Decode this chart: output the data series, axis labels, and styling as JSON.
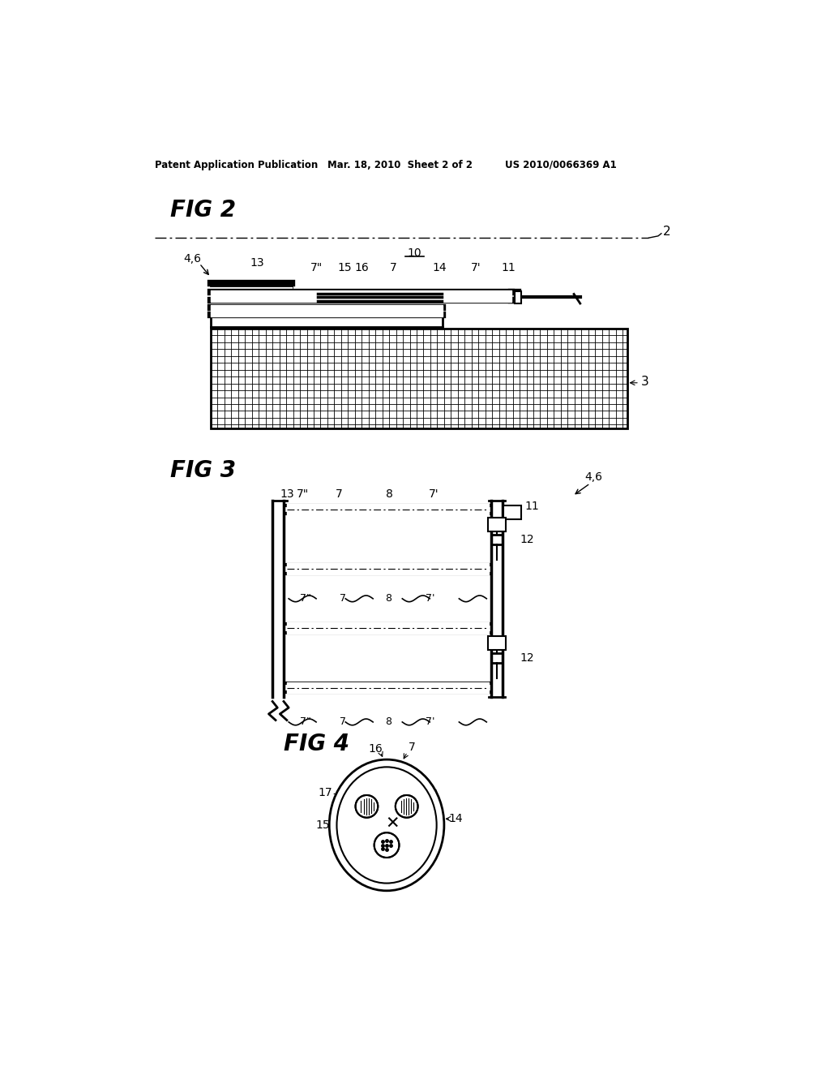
{
  "bg_color": "#ffffff",
  "header_text1": "Patent Application Publication",
  "header_text2": "Mar. 18, 2010  Sheet 2 of 2",
  "header_text3": "US 2010/0066369 A1",
  "fig2_label": "FIG 2",
  "fig3_label": "FIG 3",
  "fig4_label": "FIG 4"
}
